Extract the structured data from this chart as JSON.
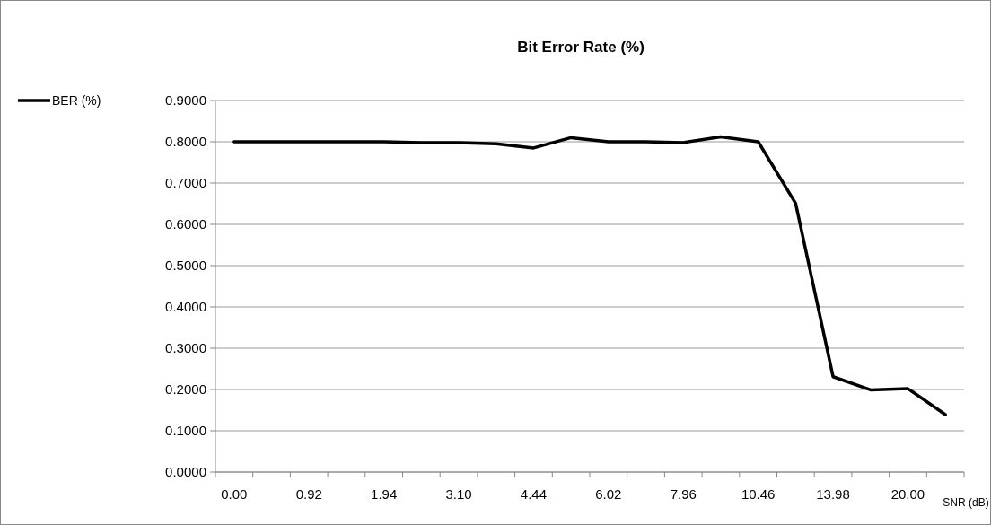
{
  "chart_data": {
    "type": "line",
    "title": "Bit Error Rate (%)",
    "xlabel": "SNR (dB)",
    "categories": [
      "0.00",
      null,
      "0.92",
      null,
      "1.94",
      null,
      "3.10",
      null,
      "4.44",
      null,
      "6.02",
      null,
      "7.96",
      null,
      "10.46",
      null,
      "13.98",
      null,
      "20.00",
      null
    ],
    "series": [
      {
        "name": "BER (%)",
        "color": "#000000",
        "values": [
          0.8,
          0.8,
          0.8,
          0.8,
          0.8,
          0.798,
          0.798,
          0.795,
          0.785,
          0.81,
          0.8,
          0.8,
          0.798,
          0.812,
          0.8,
          0.651,
          0.231,
          0.199,
          0.202,
          0.139
        ]
      }
    ],
    "ylim": [
      0,
      0.9
    ],
    "yticks": [
      {
        "value": 0,
        "label": "0.0000"
      },
      {
        "value": 0.1,
        "label": "0.1000"
      },
      {
        "value": 0.2,
        "label": "0.2000"
      },
      {
        "value": 0.3,
        "label": "0.3000"
      },
      {
        "value": 0.4,
        "label": "0.4000"
      },
      {
        "value": 0.5,
        "label": "0.5000"
      },
      {
        "value": 0.6,
        "label": "0.6000"
      },
      {
        "value": 0.7,
        "label": "0.7000"
      },
      {
        "value": 0.8,
        "label": "0.8000"
      },
      {
        "value": 0.9,
        "label": "0.9000"
      }
    ],
    "grid": "y",
    "legend": "left",
    "marker": "none",
    "line_style": "solid"
  }
}
